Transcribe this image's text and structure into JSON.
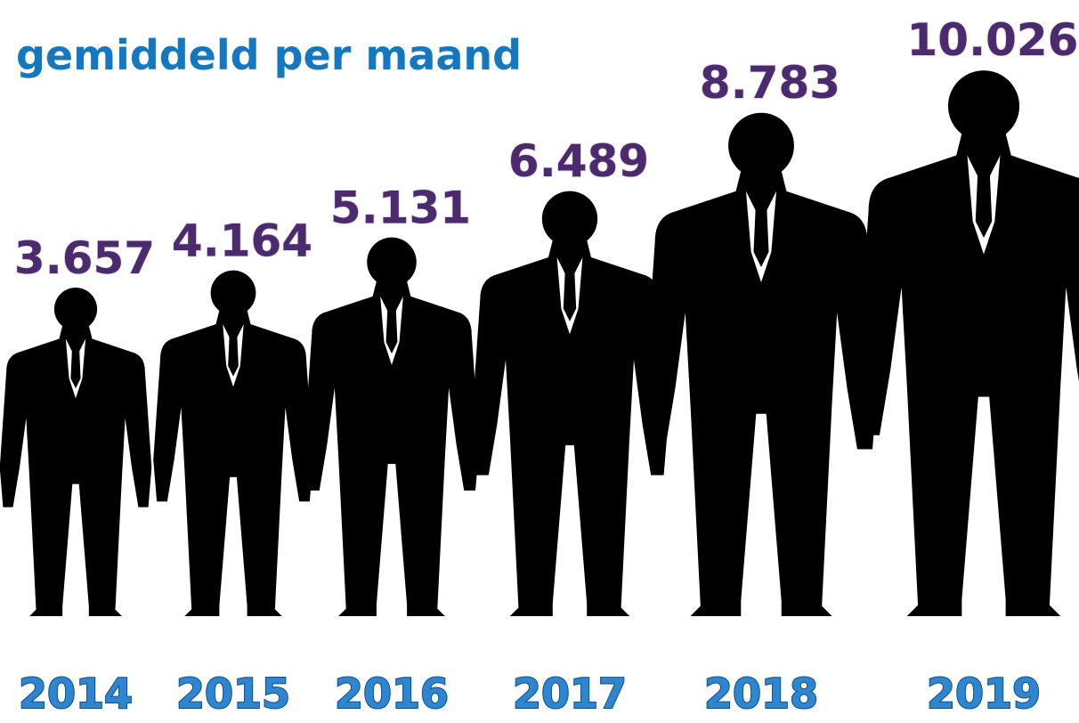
{
  "chart_data": {
    "type": "pictogram",
    "title": "gemiddeld per maand",
    "categories": [
      "2014",
      "2015",
      "2016",
      "2017",
      "2018",
      "2019"
    ],
    "values": [
      3657,
      4164,
      5131,
      6489,
      8783,
      10026
    ],
    "value_labels": [
      "3.657",
      "4.164",
      "5.131",
      "6.489",
      "8.783",
      "10.026"
    ],
    "color": "#000000"
  }
}
